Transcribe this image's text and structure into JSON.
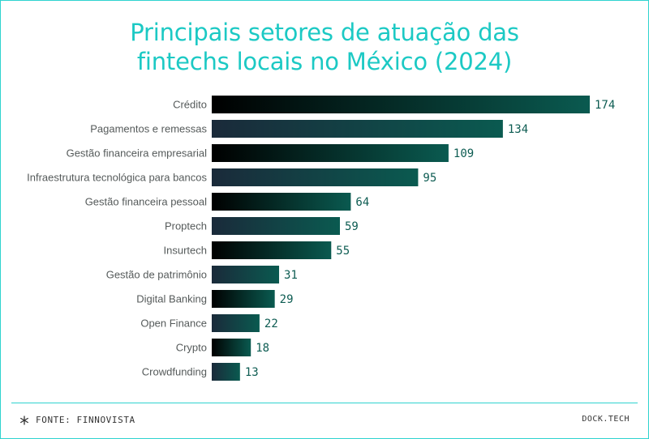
{
  "title": {
    "line1": "Principais setores de atuação das",
    "line2": "fintechs locais no México (2024)"
  },
  "chart_data": {
    "type": "bar",
    "orientation": "horizontal",
    "categories": [
      "Crédito",
      "Pagamentos e remessas",
      "Gestão financeira empresarial",
      "Infraestrutura tecnológica para bancos",
      "Gestão financeira pessoal",
      "Proptech",
      "Insurtech",
      "Gestão de patrimônio",
      "Digital Banking",
      "Open Finance",
      "Crypto",
      "Crowdfunding"
    ],
    "values": [
      174,
      134,
      109,
      95,
      64,
      59,
      55,
      31,
      29,
      22,
      18,
      13
    ],
    "xlim": [
      0,
      174
    ],
    "grid": false,
    "data_labels": true,
    "colors": {
      "gradient_odd_start": "#000000",
      "gradient_even_start": "#1a2a3a",
      "gradient_end": "#0a5a50",
      "label_color": "#555a5a",
      "value_color": "#0d5c52"
    }
  },
  "footer": {
    "source": "FONTE: FINNOVISTA",
    "brand": "DOCK.TECH",
    "icon": "asterisk-icon"
  },
  "colors": {
    "accent": "#1cc9c4",
    "border": "#2fd3cf"
  }
}
